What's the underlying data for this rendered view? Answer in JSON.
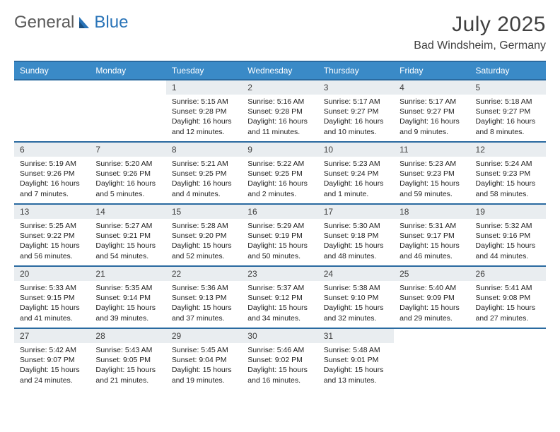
{
  "brand": {
    "part1": "General",
    "part2": "Blue"
  },
  "title": "July 2025",
  "subtitle": "Bad Windsheim, Germany",
  "colors": {
    "header_bg": "#3a8ac7",
    "header_border": "#2a6aa0",
    "daynum_bg": "#e9edf0",
    "text": "#222222",
    "title_color": "#404040"
  },
  "dow": [
    "Sunday",
    "Monday",
    "Tuesday",
    "Wednesday",
    "Thursday",
    "Friday",
    "Saturday"
  ],
  "weeks": [
    [
      null,
      null,
      {
        "n": "1",
        "sr": "5:15 AM",
        "ss": "9:28 PM",
        "dl": "16 hours and 12 minutes."
      },
      {
        "n": "2",
        "sr": "5:16 AM",
        "ss": "9:28 PM",
        "dl": "16 hours and 11 minutes."
      },
      {
        "n": "3",
        "sr": "5:17 AM",
        "ss": "9:27 PM",
        "dl": "16 hours and 10 minutes."
      },
      {
        "n": "4",
        "sr": "5:17 AM",
        "ss": "9:27 PM",
        "dl": "16 hours and 9 minutes."
      },
      {
        "n": "5",
        "sr": "5:18 AM",
        "ss": "9:27 PM",
        "dl": "16 hours and 8 minutes."
      }
    ],
    [
      {
        "n": "6",
        "sr": "5:19 AM",
        "ss": "9:26 PM",
        "dl": "16 hours and 7 minutes."
      },
      {
        "n": "7",
        "sr": "5:20 AM",
        "ss": "9:26 PM",
        "dl": "16 hours and 5 minutes."
      },
      {
        "n": "8",
        "sr": "5:21 AM",
        "ss": "9:25 PM",
        "dl": "16 hours and 4 minutes."
      },
      {
        "n": "9",
        "sr": "5:22 AM",
        "ss": "9:25 PM",
        "dl": "16 hours and 2 minutes."
      },
      {
        "n": "10",
        "sr": "5:23 AM",
        "ss": "9:24 PM",
        "dl": "16 hours and 1 minute."
      },
      {
        "n": "11",
        "sr": "5:23 AM",
        "ss": "9:23 PM",
        "dl": "15 hours and 59 minutes."
      },
      {
        "n": "12",
        "sr": "5:24 AM",
        "ss": "9:23 PM",
        "dl": "15 hours and 58 minutes."
      }
    ],
    [
      {
        "n": "13",
        "sr": "5:25 AM",
        "ss": "9:22 PM",
        "dl": "15 hours and 56 minutes."
      },
      {
        "n": "14",
        "sr": "5:27 AM",
        "ss": "9:21 PM",
        "dl": "15 hours and 54 minutes."
      },
      {
        "n": "15",
        "sr": "5:28 AM",
        "ss": "9:20 PM",
        "dl": "15 hours and 52 minutes."
      },
      {
        "n": "16",
        "sr": "5:29 AM",
        "ss": "9:19 PM",
        "dl": "15 hours and 50 minutes."
      },
      {
        "n": "17",
        "sr": "5:30 AM",
        "ss": "9:18 PM",
        "dl": "15 hours and 48 minutes."
      },
      {
        "n": "18",
        "sr": "5:31 AM",
        "ss": "9:17 PM",
        "dl": "15 hours and 46 minutes."
      },
      {
        "n": "19",
        "sr": "5:32 AM",
        "ss": "9:16 PM",
        "dl": "15 hours and 44 minutes."
      }
    ],
    [
      {
        "n": "20",
        "sr": "5:33 AM",
        "ss": "9:15 PM",
        "dl": "15 hours and 41 minutes."
      },
      {
        "n": "21",
        "sr": "5:35 AM",
        "ss": "9:14 PM",
        "dl": "15 hours and 39 minutes."
      },
      {
        "n": "22",
        "sr": "5:36 AM",
        "ss": "9:13 PM",
        "dl": "15 hours and 37 minutes."
      },
      {
        "n": "23",
        "sr": "5:37 AM",
        "ss": "9:12 PM",
        "dl": "15 hours and 34 minutes."
      },
      {
        "n": "24",
        "sr": "5:38 AM",
        "ss": "9:10 PM",
        "dl": "15 hours and 32 minutes."
      },
      {
        "n": "25",
        "sr": "5:40 AM",
        "ss": "9:09 PM",
        "dl": "15 hours and 29 minutes."
      },
      {
        "n": "26",
        "sr": "5:41 AM",
        "ss": "9:08 PM",
        "dl": "15 hours and 27 minutes."
      }
    ],
    [
      {
        "n": "27",
        "sr": "5:42 AM",
        "ss": "9:07 PM",
        "dl": "15 hours and 24 minutes."
      },
      {
        "n": "28",
        "sr": "5:43 AM",
        "ss": "9:05 PM",
        "dl": "15 hours and 21 minutes."
      },
      {
        "n": "29",
        "sr": "5:45 AM",
        "ss": "9:04 PM",
        "dl": "15 hours and 19 minutes."
      },
      {
        "n": "30",
        "sr": "5:46 AM",
        "ss": "9:02 PM",
        "dl": "15 hours and 16 minutes."
      },
      {
        "n": "31",
        "sr": "5:48 AM",
        "ss": "9:01 PM",
        "dl": "15 hours and 13 minutes."
      },
      null,
      null
    ]
  ],
  "labels": {
    "sunrise": "Sunrise: ",
    "sunset": "Sunset: ",
    "daylight": "Daylight: "
  }
}
